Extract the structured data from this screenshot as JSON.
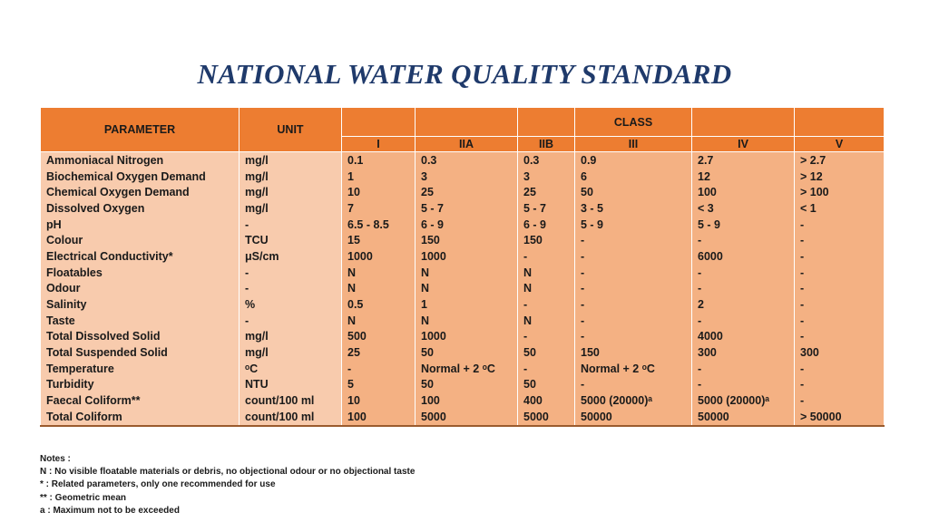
{
  "title": "NATIONAL WATER QUALITY STANDARD",
  "table": {
    "header": {
      "parameter": "PARAMETER",
      "unit": "UNIT",
      "class": "CLASS"
    },
    "classes": [
      "I",
      "IIA",
      "IIB",
      "III",
      "IV",
      "V"
    ],
    "rows": [
      {
        "parameter": "Ammoniacal Nitrogen",
        "unit": "mg/l",
        "values": [
          "0.1",
          "0.3",
          "0.3",
          "0.9",
          "2.7",
          "> 2.7"
        ]
      },
      {
        "parameter": "Biochemical Oxygen Demand",
        "unit": "mg/l",
        "values": [
          "1",
          "3",
          "3",
          "6",
          "12",
          "> 12"
        ]
      },
      {
        "parameter": "Chemical Oxygen Demand",
        "unit": "mg/l",
        "values": [
          "10",
          "25",
          "25",
          "50",
          "100",
          "> 100"
        ]
      },
      {
        "parameter": "Dissolved Oxygen",
        "unit": "mg/l",
        "values": [
          "7",
          "5 - 7",
          "5 - 7",
          "3 - 5",
          "< 3",
          "< 1"
        ]
      },
      {
        "parameter": "pH",
        "unit": "-",
        "values": [
          "6.5 - 8.5",
          "6 - 9",
          "6 - 9",
          "5 - 9",
          "5 - 9",
          "-"
        ]
      },
      {
        "parameter": "Colour",
        "unit": "TCU",
        "values": [
          "15",
          "150",
          "150",
          "-",
          "-",
          "-"
        ]
      },
      {
        "parameter": "Electrical Conductivity*",
        "unit": "μS/cm",
        "values": [
          "1000",
          "1000",
          "-",
          "-",
          "6000",
          "-"
        ]
      },
      {
        "parameter": "Floatables",
        "unit": "-",
        "values": [
          "N",
          "N",
          "N",
          "-",
          "-",
          "-"
        ]
      },
      {
        "parameter": "Odour",
        "unit": "-",
        "values": [
          "N",
          "N",
          "N",
          "-",
          "-",
          "-"
        ]
      },
      {
        "parameter": "Salinity",
        "unit": "%",
        "values": [
          "0.5",
          "1",
          "-",
          "-",
          "2",
          "-"
        ]
      },
      {
        "parameter": "Taste",
        "unit": "-",
        "values": [
          "N",
          "N",
          "N",
          "-",
          "-",
          "-"
        ]
      },
      {
        "parameter": "Total Dissolved Solid",
        "unit": "mg/l",
        "values": [
          "500",
          "1000",
          "-",
          "-",
          "4000",
          "-"
        ]
      },
      {
        "parameter": "Total Suspended Solid",
        "unit": "mg/l",
        "values": [
          "25",
          "50",
          "50",
          "150",
          "300",
          "300"
        ]
      },
      {
        "parameter": "Temperature",
        "unit": "ᵒC",
        "values": [
          "-",
          "Normal + 2 ᵒC",
          "-",
          "Normal + 2 ᵒC",
          "-",
          "-"
        ]
      },
      {
        "parameter": "Turbidity",
        "unit": "NTU",
        "values": [
          "5",
          "50",
          "50",
          "-",
          "-",
          "-"
        ]
      },
      {
        "parameter": "Faecal Coliform**",
        "unit": "count/100 ml",
        "values": [
          "10",
          "100",
          "400",
          "5000 (20000)ᵃ",
          "5000 (20000)ᵃ",
          "-"
        ]
      },
      {
        "parameter": "Total Coliform",
        "unit": "count/100 ml",
        "values": [
          "100",
          "5000",
          "5000",
          "50000",
          "50000",
          "> 50000"
        ]
      }
    ]
  },
  "notes": [
    "Notes :",
    "N  :  No visible floatable materials or debris, no objectional odour or no objectional taste",
    "*   :  Related parameters, only one recommended for use",
    "**  :  Geometric mean",
    "a  :  Maximum not to be exceeded"
  ],
  "colors": {
    "title": "#1f3a6b",
    "header": "#ed7d31",
    "param_cells": "#f8cbad",
    "value_cells": "#f4b183"
  }
}
